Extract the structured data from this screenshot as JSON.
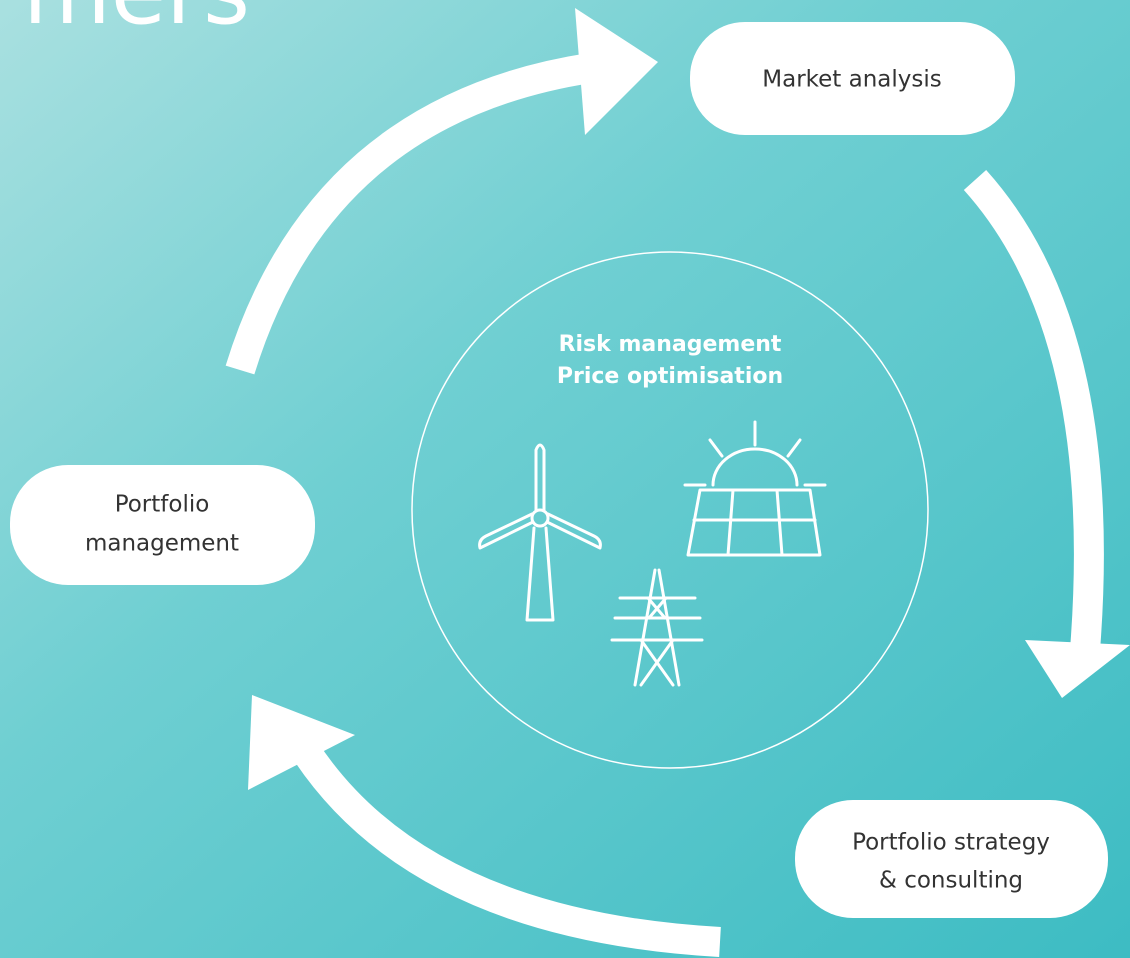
{
  "header": {
    "title_fragment": "mers"
  },
  "nodes": [
    {
      "lines": [
        "Market analysis"
      ]
    },
    {
      "lines": [
        "Portfolio strategy",
        "& consulting"
      ]
    },
    {
      "lines": [
        "Portfolio",
        "management"
      ]
    }
  ],
  "center": {
    "lines": [
      "Risk management",
      "Price optimisation"
    ]
  }
}
